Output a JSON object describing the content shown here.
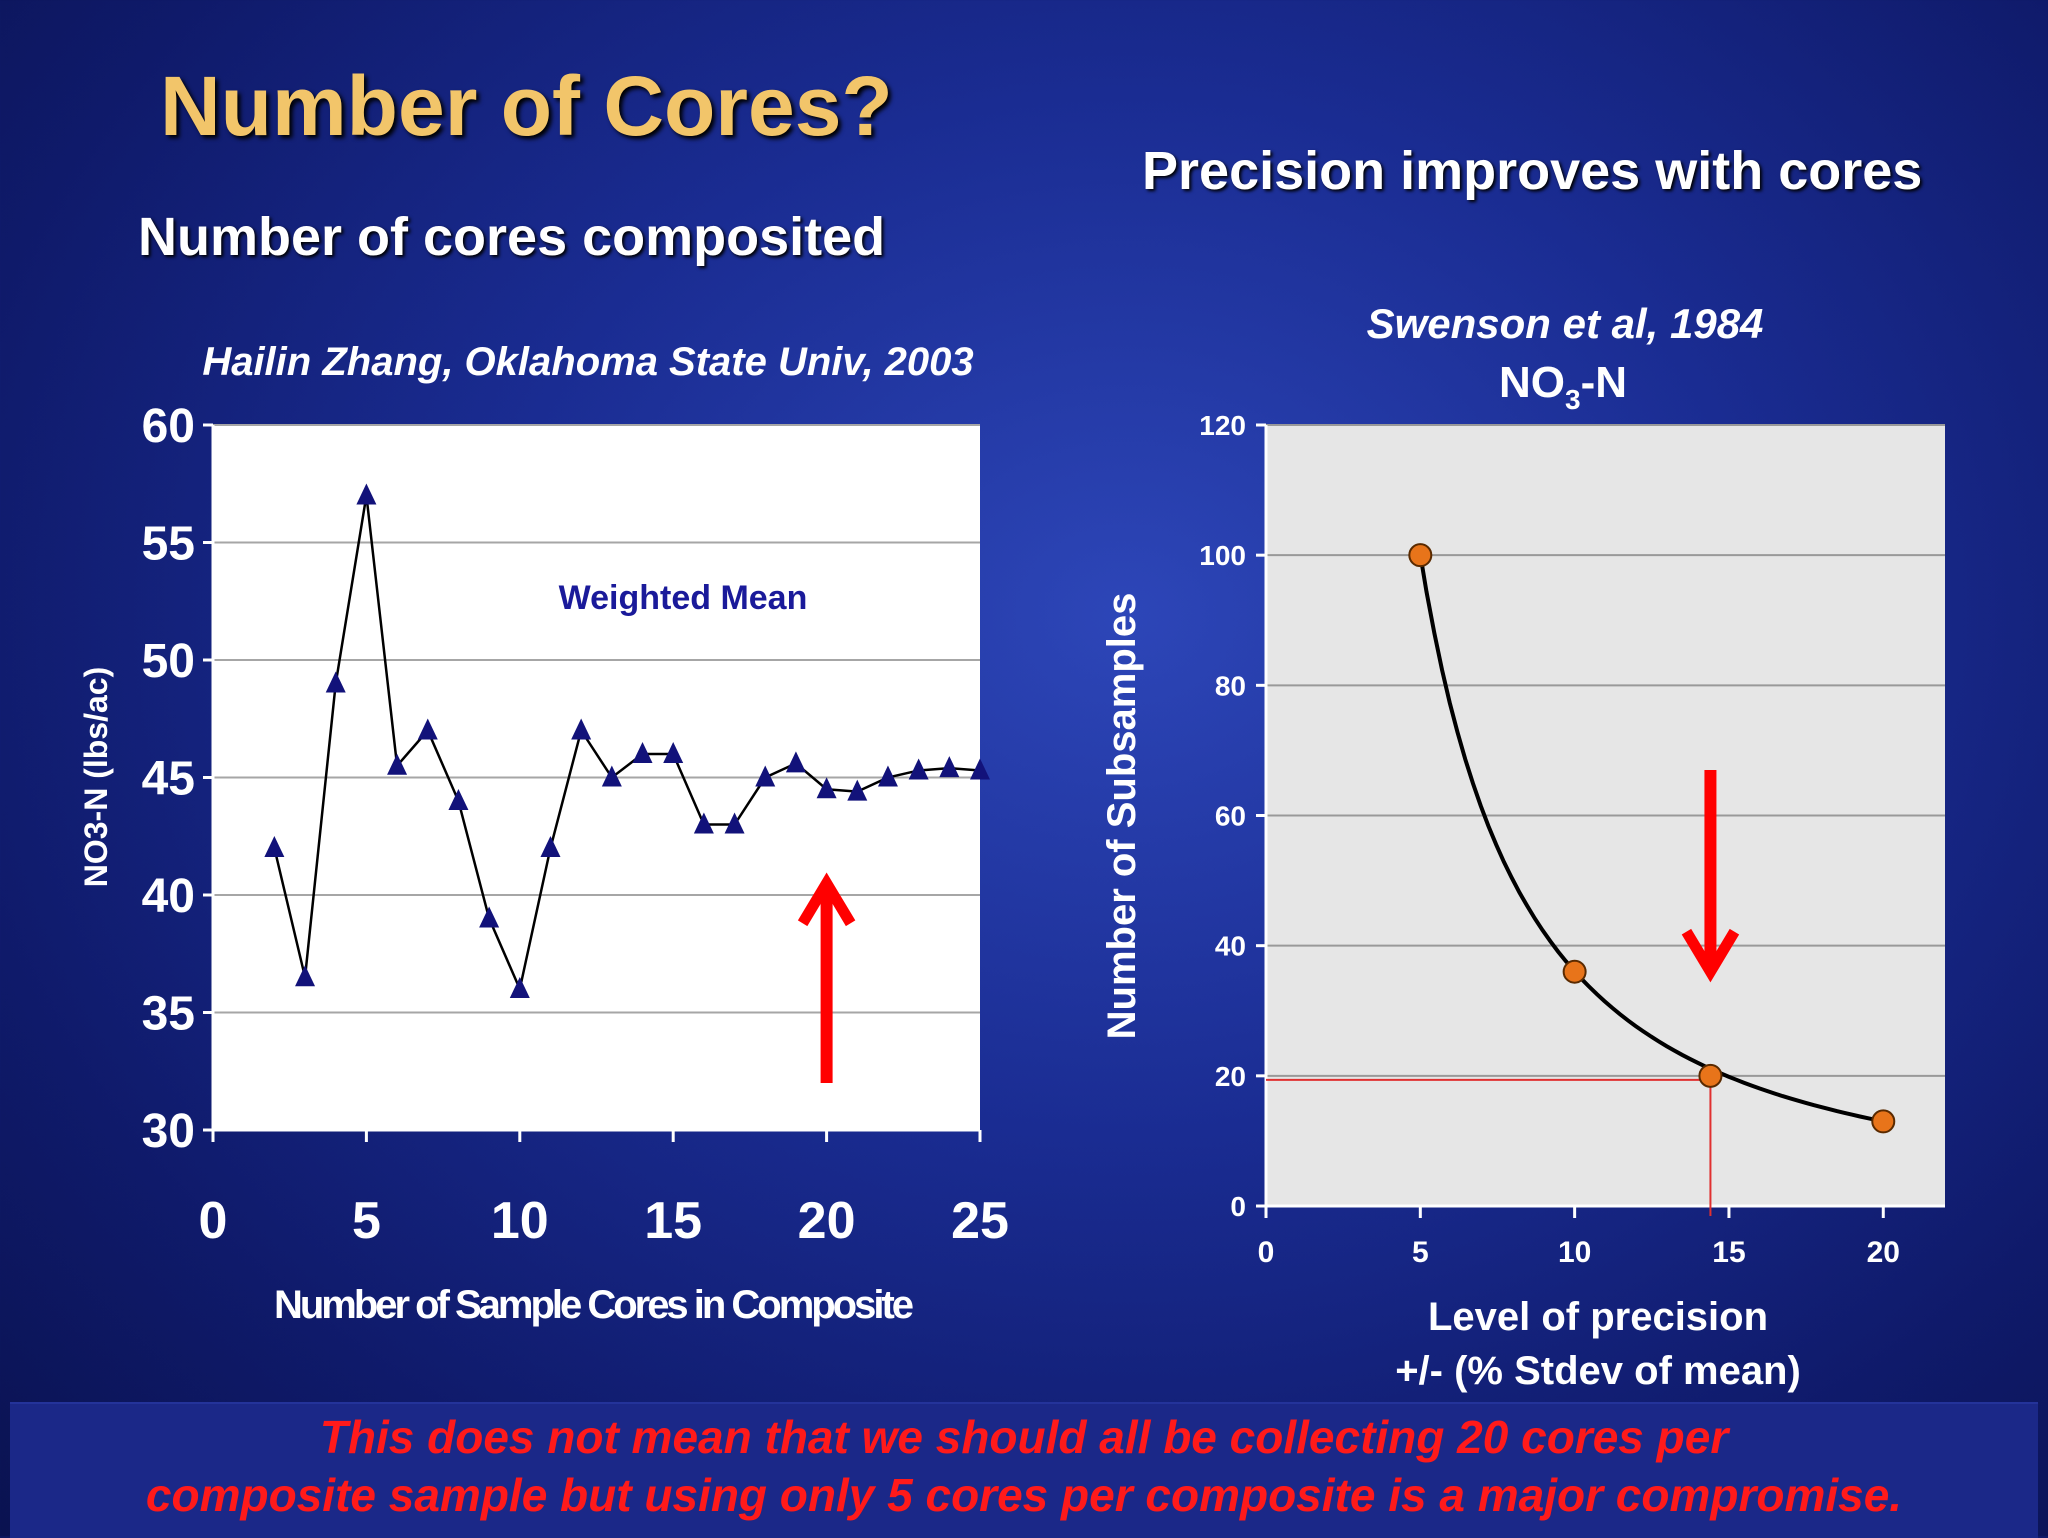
{
  "slide": {
    "title": "Number of Cores?",
    "left_heading": "Number of cores composited",
    "right_heading": "Precision improves with cores",
    "footer_line1": "This does not mean that we should all be collecting 20 cores per",
    "footer_line2": "composite sample  but using only 5 cores per composite is a major compromise."
  },
  "colors": {
    "title": "#f2c56a",
    "accent_arrow": "#ff0000",
    "left_marker": "#12127a",
    "right_marker": "#e8741a",
    "right_plot_bg": "#e6e6e6"
  },
  "chart_data": [
    {
      "type": "line",
      "subtitle": "Hailin Zhang, Oklahoma State Univ, 2003",
      "annotation": "Weighted Mean",
      "xlabel": "Number of Sample Cores in Composite",
      "ylabel": "NO3-N (lbs/ac)",
      "xlim": [
        0,
        25
      ],
      "ylim": [
        30,
        60
      ],
      "xticks": [
        "0",
        "5",
        "10",
        "15",
        "20",
        "25"
      ],
      "yticks": [
        "30",
        "35",
        "40",
        "45",
        "50",
        "55",
        "60"
      ],
      "grid": true,
      "marker": "triangle",
      "series": [
        {
          "x": [
            2,
            3,
            4,
            5,
            6,
            7,
            8,
            9,
            10,
            11,
            12,
            13,
            14,
            15,
            16,
            17,
            18,
            19,
            20,
            21,
            22,
            23,
            24,
            25
          ],
          "values": [
            42,
            36.5,
            49,
            57,
            45.5,
            47,
            44,
            39,
            36,
            42,
            47,
            45,
            46,
            46,
            43,
            43,
            45,
            45.6,
            44.5,
            44.4,
            45,
            45.3,
            45.4,
            45.3
          ]
        }
      ],
      "arrow": {
        "x": 20,
        "y_from": 32,
        "y_to": 40.5,
        "direction": "up"
      }
    },
    {
      "type": "line",
      "subtitle": "Swenson et al, 1984",
      "title_main": "NO",
      "title_sub": "3",
      "title_tail": "-N",
      "xlabel_line1": "Level of precision",
      "xlabel_line2": "+/- (% Stdev of mean)",
      "ylabel": "Number of Subsamples",
      "xlim": [
        0,
        22
      ],
      "ylim": [
        0,
        120
      ],
      "xticks": [
        "0",
        "5",
        "10",
        "15",
        "20"
      ],
      "yticks": [
        "0",
        "20",
        "40",
        "60",
        "80",
        "100",
        "120"
      ],
      "grid": true,
      "marker": "circle",
      "series": [
        {
          "x": [
            5,
            10,
            14.4,
            20
          ],
          "values": [
            100,
            36,
            20,
            13
          ]
        }
      ],
      "reference_lines": {
        "x": 14.4,
        "y": 20
      },
      "arrow": {
        "x": 14.4,
        "y_from": 67,
        "y_to": 36,
        "direction": "down"
      }
    }
  ]
}
